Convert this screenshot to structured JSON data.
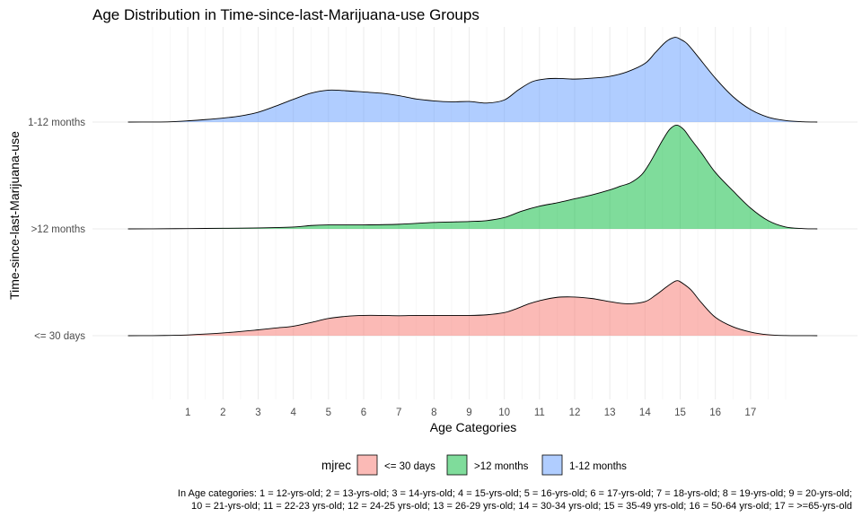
{
  "chart_data": {
    "type": "ridgeline",
    "title": "Age Distribution in Time-since-last-Marijuana-use Groups",
    "xlabel": "Age Categories",
    "ylabel": "Time-since-last-Marijuana-use",
    "x_ticks": [
      "1",
      "2",
      "3",
      "4",
      "5",
      "6",
      "7",
      "8",
      "9",
      "10",
      "11",
      "12",
      "13",
      "14",
      "15",
      "16",
      "17"
    ],
    "xlim": [
      -0.7,
      18.9
    ],
    "grid": true,
    "legend": {
      "title": "mjrec",
      "placement": "bottom",
      "entries": [
        {
          "label": "<= 30 days",
          "color": "#F8766D"
        },
        {
          "label": ">12 months",
          "color": "#00BA38"
        },
        {
          "label": "1-12 months",
          "color": "#619CFF"
        }
      ]
    },
    "caption": [
      "In Age categories: 1 = 12-yrs-old; 2 = 13-yrs-old; 3 = 14-yrs-old; 4 = 15-yrs-old; 5 = 16-yrs-old; 6 = 17-yrs-old; 7 = 18-yrs-old; 8 = 19-yrs-old; 9 = 20-yrs-old;",
      "10 = 21-yrs-old; 11 = 22-23 yrs-old; 12 = 24-25 yrs-old; 13 = 26-29 yrs-old; 14 = 30-34 yrs-old; 15 = 35-49 yrs-old; 16 = 50-64 yrs-old; 17 = >=65-yrs-old"
    ],
    "series": [
      {
        "name": "<= 30 days",
        "color": "#F8766D",
        "x": [
          -0.7,
          0,
          0.5,
          1,
          2,
          3,
          3.5,
          4,
          4.5,
          5,
          5.5,
          6,
          6.5,
          7,
          7.5,
          8,
          9,
          9.5,
          10,
          10.3,
          10.7,
          11,
          11.5,
          12,
          12.5,
          13,
          13.5,
          14,
          14.3,
          14.6,
          14.8,
          14.9,
          15,
          15.3,
          15.6,
          16,
          16.5,
          17,
          17.5,
          18,
          18.9
        ],
        "y": [
          0,
          0.003,
          0.01,
          0.025,
          0.09,
          0.19,
          0.25,
          0.31,
          0.43,
          0.56,
          0.63,
          0.66,
          0.66,
          0.65,
          0.66,
          0.66,
          0.66,
          0.68,
          0.75,
          0.86,
          1.04,
          1.14,
          1.25,
          1.26,
          1.21,
          1.11,
          1.04,
          1.11,
          1.32,
          1.58,
          1.74,
          1.79,
          1.76,
          1.5,
          1.08,
          0.6,
          0.29,
          0.12,
          0.03,
          0.005,
          0
        ]
      },
      {
        "name": ">12 months",
        "color": "#00BA38",
        "x": [
          -0.7,
          0,
          1,
          2,
          3,
          4,
          4.5,
          5,
          6,
          7,
          8,
          9,
          9.5,
          10,
          10.5,
          11,
          11.5,
          12,
          12.5,
          13,
          13.3,
          13.6,
          13.9,
          14.1,
          14.3,
          14.5,
          14.7,
          14.9,
          15.1,
          15.3,
          15.6,
          16,
          16.5,
          17,
          17.5,
          18,
          18.5,
          18.9
        ],
        "y": [
          0,
          0.003,
          0.01,
          0.02,
          0.03,
          0.06,
          0.11,
          0.13,
          0.13,
          0.15,
          0.21,
          0.24,
          0.27,
          0.37,
          0.58,
          0.74,
          0.85,
          0.98,
          1.11,
          1.27,
          1.39,
          1.51,
          1.76,
          2.08,
          2.48,
          2.89,
          3.24,
          3.38,
          3.24,
          2.93,
          2.48,
          1.84,
          1.24,
          0.68,
          0.27,
          0.06,
          0.01,
          0
        ]
      },
      {
        "name": "1-12 months",
        "color": "#619CFF",
        "x": [
          -0.7,
          0,
          0.5,
          1,
          1.5,
          2,
          2.5,
          3,
          3.5,
          4,
          4.5,
          5,
          5.5,
          6,
          6.5,
          7,
          7.5,
          8,
          8.5,
          9,
          9.5,
          10,
          10.4,
          10.8,
          11.2,
          11.6,
          12,
          12.5,
          13,
          13.5,
          14,
          14.3,
          14.6,
          14.85,
          15,
          15.2,
          15.5,
          16,
          16.5,
          17,
          17.5,
          18,
          18.5,
          18.9
        ],
        "y": [
          0,
          0.002,
          0.01,
          0.04,
          0.08,
          0.13,
          0.2,
          0.32,
          0.52,
          0.74,
          0.94,
          1.04,
          1.02,
          0.98,
          0.94,
          0.86,
          0.75,
          0.69,
          0.66,
          0.67,
          0.62,
          0.72,
          1.05,
          1.32,
          1.41,
          1.42,
          1.4,
          1.43,
          1.49,
          1.64,
          1.91,
          2.27,
          2.62,
          2.76,
          2.7,
          2.55,
          2.14,
          1.43,
          0.83,
          0.41,
          0.16,
          0.05,
          0.01,
          0
        ]
      }
    ]
  }
}
